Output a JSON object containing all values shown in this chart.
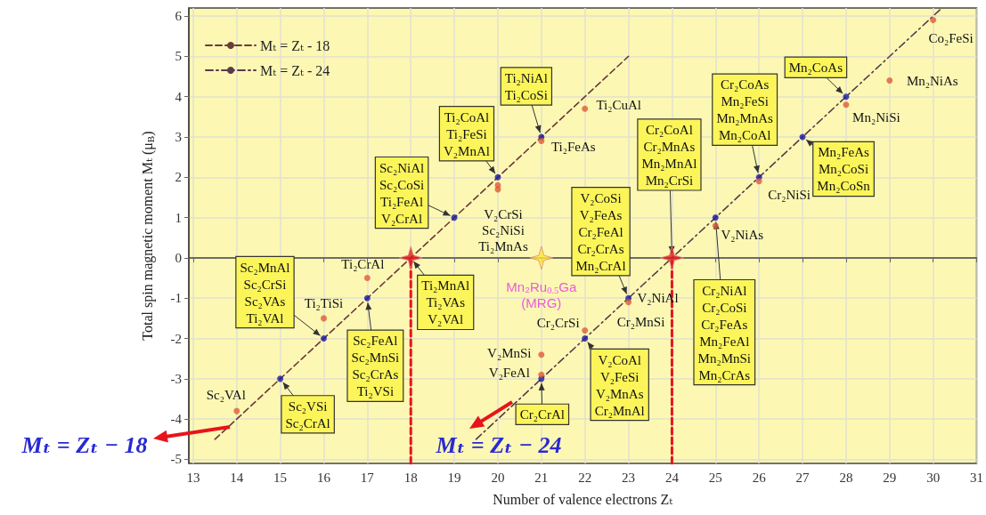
{
  "chart_data": {
    "type": "scatter",
    "xlabel": "Number of valence electrons Zₜ",
    "ylabel": "Total spin magnetic moment Mₜ (μ$_{B}$)",
    "xlim": [
      12.9,
      31
    ],
    "xticks": [
      13,
      14,
      15,
      16,
      17,
      18,
      19,
      20,
      21,
      22,
      23,
      24,
      25,
      26,
      27,
      28,
      29,
      30,
      31
    ],
    "ylim": [
      -5.1,
      6.2
    ],
    "yticks": [
      -5,
      -4,
      -3,
      -2,
      -1,
      0,
      1,
      2,
      3,
      4,
      5,
      6
    ],
    "grid": true,
    "legend": "top left",
    "series": [
      {
        "type": "line",
        "name": "Mₜ = Zₜ - 18",
        "color": "#6b3a3a",
        "x": [
          13.5,
          23
        ],
        "values": [
          -4.5,
          5
        ],
        "line_style": "dashed",
        "marker": "none"
      },
      {
        "type": "line",
        "name": "Mₜ = Zₜ - 24",
        "color": "#5a3a4a",
        "x": [
          19.5,
          30.2
        ],
        "values": [
          -4.5,
          6.2
        ],
        "line_style": "dashdot",
        "marker": "none"
      },
      {
        "color": "#1a1aa0",
        "marker": "circle",
        "x": [
          15,
          16,
          17,
          19,
          20,
          21,
          21,
          22,
          23,
          25,
          26,
          27,
          28
        ],
        "values": [
          -3,
          -2,
          -1,
          1,
          2,
          3,
          -3,
          -2,
          -1,
          1,
          2,
          3,
          4
        ]
      },
      {
        "color": "#e05a3a",
        "marker": "circle",
        "x": [
          14,
          16,
          17,
          20,
          20,
          21,
          22,
          30,
          29,
          28,
          26,
          25,
          23,
          22,
          21,
          21
        ],
        "values": [
          -3.8,
          -1.5,
          -0.5,
          1.8,
          1.7,
          2.9,
          3.7,
          5.9,
          4.4,
          3.8,
          1.9,
          0.8,
          -1.1,
          -1.8,
          -2.4,
          -2.9
        ]
      },
      {
        "type": "scatter",
        "color": "#e31a1c",
        "marker": "star",
        "x": [
          18,
          24
        ],
        "values": [
          0,
          0
        ]
      },
      {
        "type": "scatter",
        "color": "#ffe838",
        "marker": "star",
        "x": [
          21
        ],
        "values": [
          0
        ]
      },
      {
        "type": "line",
        "color": "#e8141b",
        "x": [
          18,
          18
        ],
        "values": [
          -5.1,
          0
        ],
        "line_style": "dashed",
        "marker": "none"
      },
      {
        "type": "line",
        "color": "#e8141b",
        "x": [
          24,
          24
        ],
        "values": [
          -5.1,
          0
        ],
        "line_style": "dashed",
        "marker": "none"
      }
    ],
    "annotations": [
      {
        "text": "Sc₂VSi\nSc₂CrAl",
        "x": 15,
        "y": -3
      },
      {
        "text": "Sc₂MnAl\nSc₂CrSi\nSc₂VAs\nTi₂VAl",
        "x": 16,
        "y": -2
      },
      {
        "text": "Sc₂FeAl\nSc₂MnSi\nSc₂CrAs\nTi₂VSi",
        "x": 17,
        "y": -1
      },
      {
        "text": "Sc₂NiAl\nSc₂CoSi\nTi₂FeAl\nV₂CrAl",
        "x": 19,
        "y": 1
      },
      {
        "text": "Ti₂MnAl\nTi₂VAs\nV₂VAl",
        "x": 18,
        "y": 0
      },
      {
        "text": "Ti₂CoAl\nTi₂FeSi\nV₂MnAl",
        "x": 20,
        "y": 2
      },
      {
        "text": "Ti₂NiAl\nTi₂CoSi",
        "x": 21,
        "y": 3
      },
      {
        "text": "V₂CoSi\nV₂FeAs\nCr₂FeAl\nCr₂CrAs\nMn₂CrAl",
        "x": 23,
        "y": -1
      },
      {
        "text": "Cr₂CoAl\nCr₂MnAs\nMn₂MnAl\nMn₂CrSi",
        "x": 24,
        "y": 0
      },
      {
        "text": "Cr₂CoAs\nMn₂FeSi\nMn₂MnAs\nMn₂CoAl",
        "x": 26,
        "y": 2
      },
      {
        "text": "Mn₂CoAs",
        "x": 28,
        "y": 4
      },
      {
        "text": "Mn₂FeAs\nMn₂CoSi\nMn₂CoSn",
        "x": 27,
        "y": 3
      },
      {
        "text": "Cr₂NiAl\nCr₂CoSi\nCr₂FeAs\nMn₂FeAl\nMn₂MnSi\nMn₂CrAs",
        "x": 25,
        "y": 1
      },
      {
        "text": "V₂CoAl\nV₂FeSi\nV₂MnAs\nCr₂MnAl",
        "x": 22,
        "y": -2
      },
      {
        "text": "Cr₂CrAl",
        "x": 21,
        "y": -3
      },
      {
        "text": "Sc₂VAl",
        "x": 14,
        "y": -3.8
      },
      {
        "text": "Ti₂TiSi",
        "x": 16,
        "y": -1.5
      },
      {
        "text": "Ti₂CrAl",
        "x": 17,
        "y": -0.5
      },
      {
        "text": "V₂CrSi\nSc₂NiSi\nTi₂MnAs",
        "x": 20,
        "y": 1.7
      },
      {
        "text": "Ti₂FeAs",
        "x": 21,
        "y": 2.9
      },
      {
        "text": "Ti₂CuAl",
        "x": 22,
        "y": 3.7
      },
      {
        "text": "Co₂FeSi",
        "x": 30,
        "y": 5.9
      },
      {
        "text": "Mn₂NiAs",
        "x": 29,
        "y": 4.4
      },
      {
        "text": "Mn₂NiSi",
        "x": 28,
        "y": 3.8
      },
      {
        "text": "Cr₂NiSi",
        "x": 26,
        "y": 1.9
      },
      {
        "text": "V₂NiAs",
        "x": 25,
        "y": 0.8
      },
      {
        "text": "V₂NiAl",
        "x": 23,
        "y": -1
      },
      {
        "text": "Cr₂MnSi",
        "x": 23,
        "y": -1.1
      },
      {
        "text": "Cr₂CrSi",
        "x": 22,
        "y": -1.8
      },
      {
        "text": "V₂MnSi",
        "x": 21,
        "y": -2.4
      },
      {
        "text": "V₂FeAl",
        "x": 21,
        "y": -2.9
      },
      {
        "text": "Mn₂Ru$_{0.5}$Ga\n(MRG)",
        "x": 21,
        "y": 0
      },
      "Mₜ = Zₜ − 18",
      "Mₜ = Zₜ − 24"
    ]
  }
}
